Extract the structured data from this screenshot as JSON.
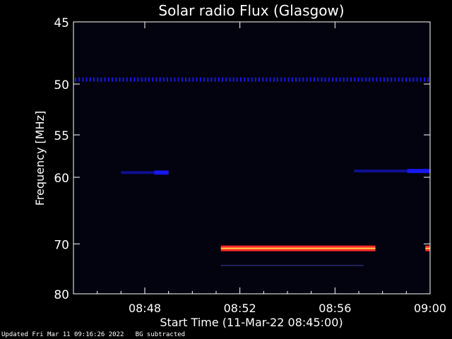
{
  "chart_data": {
    "type": "heatmap",
    "title": "Solar radio Flux (Glasgow)",
    "ylabel": "Frequency [MHz]",
    "xlabel": "Start Time (11-Mar-22 08:45:00)",
    "x_ticks": [
      "08:48",
      "08:52",
      "08:56",
      "09:00"
    ],
    "x_tick_minutes": [
      3,
      7,
      11,
      15
    ],
    "xlim_minutes": [
      0,
      15
    ],
    "y_ticks": [
      45,
      50,
      55,
      60,
      70,
      80
    ],
    "ylim": [
      45,
      80
    ],
    "y_scale": "reciprocal",
    "features": [
      {
        "kind": "persistent-interference",
        "freq_mhz": 49.6,
        "start": 0,
        "end": 15,
        "intensity": "low"
      },
      {
        "kind": "intermittent-emission",
        "freq_mhz": 59.4,
        "start": 2.0,
        "end": 4.0,
        "intensity": "low"
      },
      {
        "kind": "intermittent-emission",
        "freq_mhz": 59.2,
        "start": 11.8,
        "end": 15,
        "intensity": "low"
      },
      {
        "kind": "narrowband-signal",
        "freq_mhz": 70.8,
        "start": 6.2,
        "end": 12.7,
        "intensity": "high"
      },
      {
        "kind": "narrowband-signal",
        "freq_mhz": 70.8,
        "start": 14.8,
        "end": 15,
        "intensity": "high"
      },
      {
        "kind": "weak-band",
        "freq_mhz": 74.0,
        "start": 6.2,
        "end": 12.2,
        "intensity": "very-low"
      }
    ],
    "colors": {
      "background": "#000000",
      "plot_bg": "#03030f",
      "low": "#1a1aff",
      "high": "#ff2a2a",
      "core": "#ffd24a"
    }
  },
  "footer": {
    "updated": "Updated Fri Mar 11 09:16:26 2022",
    "note": "BG subtracted"
  }
}
